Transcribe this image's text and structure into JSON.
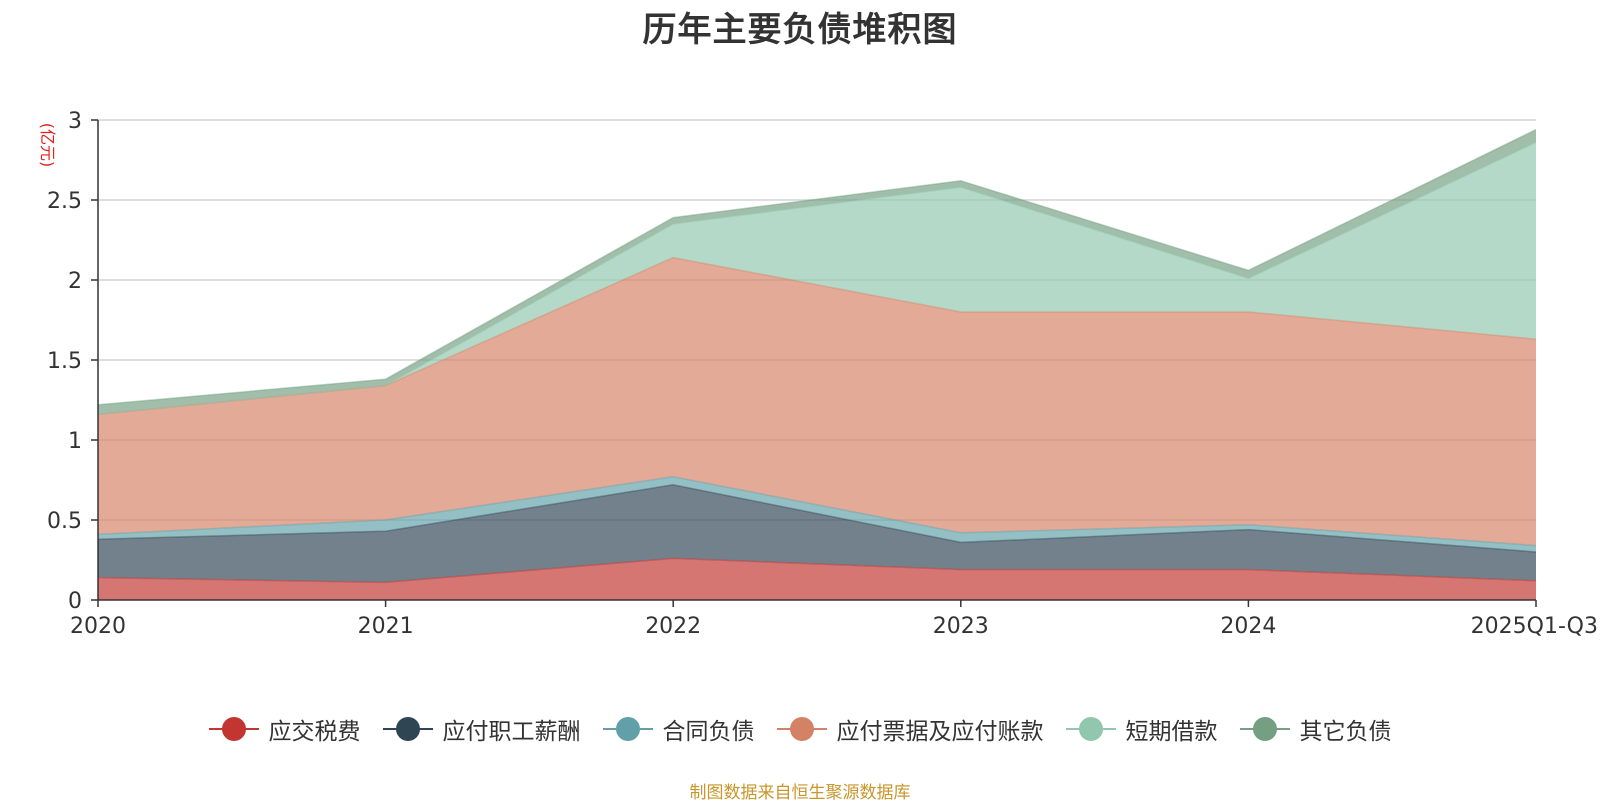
{
  "chart_data": {
    "type": "area",
    "stacked": true,
    "title": "历年主要负债堆积图",
    "unit_label": "(亿元)",
    "categories": [
      "2020",
      "2021",
      "2022",
      "2023",
      "2024",
      "2025Q1-Q3"
    ],
    "ylim": [
      0,
      3
    ],
    "yticks": [
      "0",
      "0.5",
      "1",
      "1.5",
      "2",
      "2.5",
      "3"
    ],
    "grid": true,
    "legend_position": "bottom",
    "series": [
      {
        "name": "应交税费",
        "color": "#c23531",
        "values": [
          0.14,
          0.11,
          0.26,
          0.19,
          0.19,
          0.12
        ]
      },
      {
        "name": "应付职工薪酬",
        "color": "#2f4554",
        "values": [
          0.24,
          0.32,
          0.46,
          0.17,
          0.25,
          0.18
        ]
      },
      {
        "name": "合同负债",
        "color": "#61a0a8",
        "values": [
          0.03,
          0.07,
          0.05,
          0.06,
          0.03,
          0.04
        ]
      },
      {
        "name": "应付票据及应付账款",
        "color": "#d48265",
        "values": [
          0.75,
          0.84,
          1.37,
          1.38,
          1.33,
          1.29
        ]
      },
      {
        "name": "短期借款",
        "color": "#91c7ae",
        "values": [
          0.0,
          0.0,
          0.21,
          0.78,
          0.21,
          1.23
        ]
      },
      {
        "name": "其它负债",
        "color": "#749f83",
        "values": [
          0.06,
          0.04,
          0.04,
          0.04,
          0.05,
          0.08
        ]
      }
    ],
    "source": "制图数据来自恒生聚源数据库"
  }
}
